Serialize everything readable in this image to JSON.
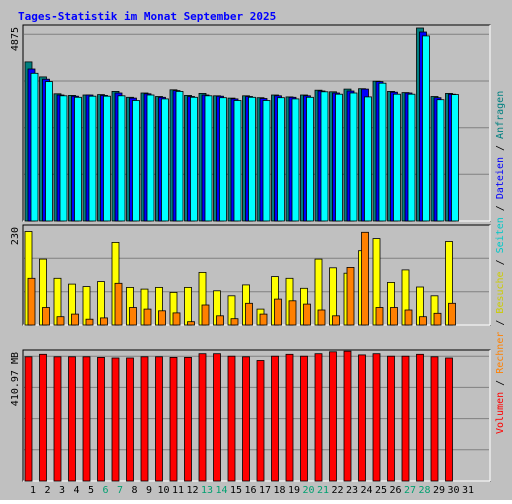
{
  "chart_data": {
    "type": "bar",
    "title": "Tages-Statistik im Monat September 2025",
    "categories": [
      "1",
      "2",
      "3",
      "4",
      "5",
      "6",
      "7",
      "8",
      "9",
      "10",
      "11",
      "12",
      "13",
      "14",
      "15",
      "16",
      "17",
      "18",
      "19",
      "20",
      "21",
      "22",
      "23",
      "24",
      "25",
      "26",
      "27",
      "28",
      "29",
      "30",
      "31"
    ],
    "weekend_days": [
      6,
      7,
      13,
      14,
      20,
      21,
      27,
      28
    ],
    "panels": [
      {
        "label": "4875",
        "ylim": [
          0,
          4875
        ],
        "series": [
          {
            "name": "Anfragen",
            "color": "#008080",
            "values": [
              4040,
              3660,
              3230,
              3190,
              3200,
              3210,
              3290,
              3140,
              3250,
              3160,
              3330,
              3190,
              3240,
              3180,
              3120,
              3180,
              3130,
              3200,
              3150,
              3200,
              3320,
              3280,
              3350,
              3360,
              3550,
              3290,
              3260,
              4900,
              3160,
              3240,
              0
            ]
          },
          {
            "name": "Dateien",
            "color": "#0000ff",
            "values": [
              3860,
              3600,
              3200,
              3170,
              3200,
              3190,
              3250,
              3120,
              3230,
              3140,
              3310,
              3160,
              3200,
              3170,
              3100,
              3160,
              3110,
              3180,
              3140,
              3180,
              3300,
              3250,
              3300,
              3350,
              3540,
              3270,
              3250,
              4800,
              3130,
              3220,
              0
            ]
          },
          {
            "name": "Seiten",
            "color": "#00ffff",
            "values": [
              3750,
              3540,
              3180,
              3140,
              3170,
              3170,
              3180,
              3060,
              3200,
              3100,
              3290,
              3140,
              3180,
              3130,
              3060,
              3140,
              3060,
              3130,
              3100,
              3140,
              3280,
              3220,
              3250,
              3150,
              3500,
              3220,
              3220,
              4700,
              3080,
              3210,
              0
            ]
          }
        ]
      },
      {
        "label": "230",
        "ylim": [
          0,
          230
        ],
        "series": [
          {
            "name": "Besuche",
            "color": "#ffff00",
            "values": [
              224,
              158,
              112,
              98,
              92,
              104,
              198,
              90,
              86,
              90,
              78,
              90,
              126,
              82,
              70,
              96,
              38,
              116,
              112,
              88,
              158,
              137,
              124,
              178,
              207,
              102,
              132,
              91,
              70,
              200,
              0
            ]
          },
          {
            "name": "Rechner",
            "color": "#ff8000",
            "values": [
              112,
              42,
              20,
              26,
              14,
              17,
              100,
              42,
              38,
              34,
              29,
              8,
              48,
              22,
              15,
              52,
              26,
              62,
              58,
              50,
              36,
              22,
              138,
              222,
              42,
              42,
              36,
              20,
              28,
              52,
              0
            ]
          }
        ]
      },
      {
        "label": "410.97 MB",
        "ylim": [
          0,
          410.97
        ],
        "series": [
          {
            "name": "Volumen",
            "color": "#ff0000",
            "values": [
              402,
              410,
              402,
              402,
              402,
              400,
              398,
              398,
              402,
              402,
              400,
              400,
              412,
              412,
              404,
              402,
              390,
              404,
              410,
              404,
              412,
              418,
              420,
              408,
              412,
              404,
              404,
              410,
              402,
              398,
              0
            ]
          }
        ]
      }
    ],
    "right_legend": [
      {
        "text": "Volumen",
        "color": "#ff0000"
      },
      {
        "text": " / ",
        "color": "#000000"
      },
      {
        "text": "Rechner",
        "color": "#ff8000"
      },
      {
        "text": " / ",
        "color": "#000000"
      },
      {
        "text": "Besuche",
        "color": "#cccc00"
      },
      {
        "text": " / ",
        "color": "#000000"
      },
      {
        "text": "Seiten",
        "color": "#00c8c8"
      },
      {
        "text": " / ",
        "color": "#000000"
      },
      {
        "text": "Dateien",
        "color": "#0000ff"
      },
      {
        "text": " / ",
        "color": "#000000"
      },
      {
        "text": "Anfragen",
        "color": "#008080"
      }
    ],
    "colors": {
      "background": "#c0c0c0",
      "title": "#0000ff",
      "grid": "#808080",
      "weekday_label": "#000000",
      "weekend_label": "#00a070"
    }
  }
}
